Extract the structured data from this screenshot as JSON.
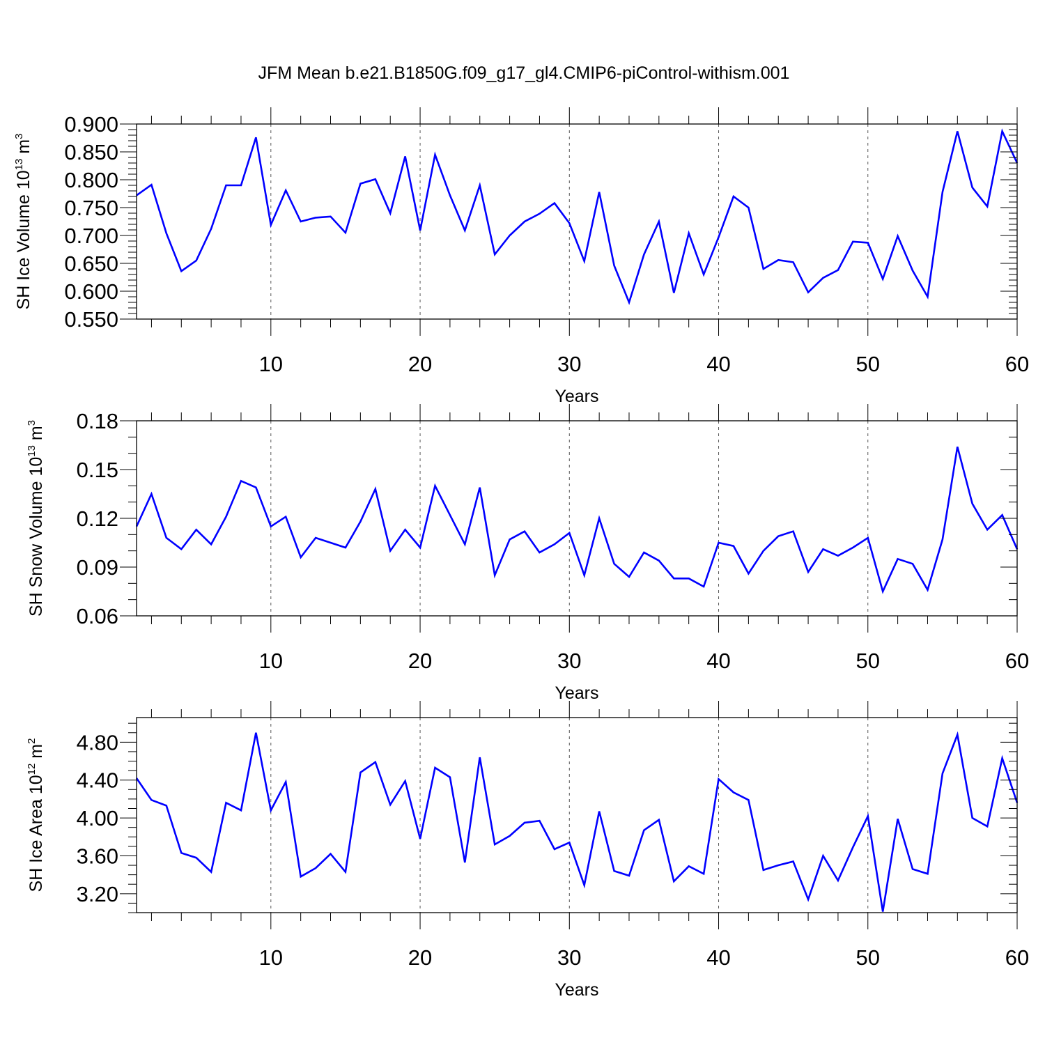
{
  "title": "JFM Mean b.e21.B1850G.f09_g17_gl4.CMIP6-piControl-withism.001",
  "colors": {
    "line": "#0000ff",
    "axis": "#000000",
    "grid": "#555555"
  },
  "chart_data": [
    {
      "type": "line",
      "ylabel_main": "SH Ice Volume 10",
      "ylabel_exp": "13",
      "ylabel_unit": " m",
      "ylabel_unit_exp": "3",
      "xlabel": "Years",
      "xlim": [
        1,
        60
      ],
      "ylim": [
        0.55,
        0.9
      ],
      "yticks": [
        0.55,
        0.6,
        0.65,
        0.7,
        0.75,
        0.8,
        0.85,
        0.9
      ],
      "ytick_labels": [
        "0.550",
        "0.600",
        "0.650",
        "0.700",
        "0.750",
        "0.800",
        "0.850",
        "0.900"
      ],
      "yminor_step": 0.01,
      "xticks": [
        10,
        20,
        30,
        40,
        50,
        60
      ],
      "xtick_labels": [
        "10",
        "20",
        "30",
        "40",
        "50",
        "60"
      ],
      "gridlines_x": [
        10,
        20,
        30,
        40,
        50
      ],
      "series": [
        {
          "name": "SH Ice Volume",
          "x": [
            1,
            2,
            3,
            4,
            5,
            6,
            7,
            8,
            9,
            10,
            11,
            12,
            13,
            14,
            15,
            16,
            17,
            18,
            19,
            20,
            21,
            22,
            23,
            24,
            25,
            26,
            27,
            28,
            29,
            30,
            31,
            32,
            33,
            34,
            35,
            36,
            37,
            38,
            39,
            40,
            41,
            42,
            43,
            44,
            45,
            46,
            47,
            48,
            49,
            50,
            51,
            52,
            53,
            54,
            55,
            56,
            57,
            58,
            59,
            60
          ],
          "values": [
            0.772,
            0.791,
            0.704,
            0.636,
            0.655,
            0.712,
            0.79,
            0.79,
            0.876,
            0.719,
            0.781,
            0.725,
            0.732,
            0.734,
            0.705,
            0.793,
            0.801,
            0.74,
            0.842,
            0.709,
            0.845,
            0.772,
            0.709,
            0.79,
            0.666,
            0.7,
            0.725,
            0.739,
            0.758,
            0.722,
            0.654,
            0.778,
            0.646,
            0.58,
            0.666,
            0.725,
            0.597,
            0.704,
            0.63,
            0.697,
            0.77,
            0.75,
            0.64,
            0.656,
            0.652,
            0.598,
            0.624,
            0.638,
            0.689,
            0.687,
            0.622,
            0.699,
            0.637,
            0.59,
            0.778,
            0.887,
            0.786,
            0.752,
            0.887,
            0.83
          ]
        }
      ]
    },
    {
      "type": "line",
      "ylabel_main": "SH Snow Volume 10",
      "ylabel_exp": "13",
      "ylabel_unit": " m",
      "ylabel_unit_exp": "3",
      "xlabel": "Years",
      "xlim": [
        1,
        60
      ],
      "ylim": [
        0.06,
        0.18
      ],
      "yticks": [
        0.06,
        0.09,
        0.12,
        0.15,
        0.18
      ],
      "ytick_labels": [
        "0.06",
        "0.09",
        "0.12",
        "0.15",
        "0.18"
      ],
      "yminor_step": 0.01,
      "xticks": [
        10,
        20,
        30,
        40,
        50,
        60
      ],
      "xtick_labels": [
        "10",
        "20",
        "30",
        "40",
        "50",
        "60"
      ],
      "gridlines_x": [
        10,
        20,
        30,
        40,
        50
      ],
      "series": [
        {
          "name": "SH Snow Volume",
          "x": [
            1,
            2,
            3,
            4,
            5,
            6,
            7,
            8,
            9,
            10,
            11,
            12,
            13,
            14,
            15,
            16,
            17,
            18,
            19,
            20,
            21,
            22,
            23,
            24,
            25,
            26,
            27,
            28,
            29,
            30,
            31,
            32,
            33,
            34,
            35,
            36,
            37,
            38,
            39,
            40,
            41,
            42,
            43,
            44,
            45,
            46,
            47,
            48,
            49,
            50,
            51,
            52,
            53,
            54,
            55,
            56,
            57,
            58,
            59,
            60
          ],
          "values": [
            0.115,
            0.135,
            0.108,
            0.101,
            0.113,
            0.104,
            0.121,
            0.143,
            0.139,
            0.115,
            0.121,
            0.096,
            0.108,
            0.105,
            0.102,
            0.118,
            0.138,
            0.1,
            0.113,
            0.102,
            0.14,
            0.122,
            0.104,
            0.139,
            0.085,
            0.107,
            0.112,
            0.099,
            0.104,
            0.111,
            0.085,
            0.12,
            0.092,
            0.084,
            0.099,
            0.094,
            0.083,
            0.083,
            0.078,
            0.105,
            0.103,
            0.086,
            0.1,
            0.109,
            0.112,
            0.087,
            0.101,
            0.097,
            0.102,
            0.108,
            0.075,
            0.095,
            0.092,
            0.076,
            0.107,
            0.164,
            0.129,
            0.113,
            0.122,
            0.101
          ]
        }
      ]
    },
    {
      "type": "line",
      "ylabel_main": "SH Ice Area 10",
      "ylabel_exp": "12",
      "ylabel_unit": " m",
      "ylabel_unit_exp": "2",
      "xlabel": "Years",
      "xlim": [
        1,
        60
      ],
      "ylim": [
        3.0,
        5.06
      ],
      "yticks": [
        3.2,
        3.6,
        4.0,
        4.4,
        4.8
      ],
      "ytick_labels": [
        "3.20",
        "3.60",
        "4.00",
        "4.40",
        "4.80"
      ],
      "yminor_step": 0.1,
      "xticks": [
        10,
        20,
        30,
        40,
        50,
        60
      ],
      "xtick_labels": [
        "10",
        "20",
        "30",
        "40",
        "50",
        "60"
      ],
      "gridlines_x": [
        10,
        20,
        30,
        40,
        50
      ],
      "series": [
        {
          "name": "SH Ice Area",
          "x": [
            1,
            2,
            3,
            4,
            5,
            6,
            7,
            8,
            9,
            10,
            11,
            12,
            13,
            14,
            15,
            16,
            17,
            18,
            19,
            20,
            21,
            22,
            23,
            24,
            25,
            26,
            27,
            28,
            29,
            30,
            31,
            32,
            33,
            34,
            35,
            36,
            37,
            38,
            39,
            40,
            41,
            42,
            43,
            44,
            45,
            46,
            47,
            48,
            49,
            50,
            51,
            52,
            53,
            54,
            55,
            56,
            57,
            58,
            59,
            60
          ],
          "values": [
            4.42,
            4.19,
            4.13,
            3.63,
            3.58,
            3.43,
            4.16,
            4.08,
            4.9,
            4.08,
            4.38,
            3.38,
            3.47,
            3.62,
            3.43,
            4.48,
            4.59,
            4.14,
            4.39,
            3.78,
            4.53,
            4.43,
            3.53,
            4.64,
            3.72,
            3.81,
            3.95,
            3.97,
            3.67,
            3.74,
            3.29,
            4.07,
            3.44,
            3.39,
            3.87,
            3.98,
            3.33,
            3.49,
            3.41,
            4.41,
            4.27,
            4.19,
            3.45,
            3.5,
            3.54,
            3.14,
            3.6,
            3.34,
            3.69,
            4.02,
            3.01,
            3.99,
            3.46,
            3.41,
            4.47,
            4.88,
            4.0,
            3.91,
            4.63,
            4.16
          ]
        }
      ]
    }
  ]
}
